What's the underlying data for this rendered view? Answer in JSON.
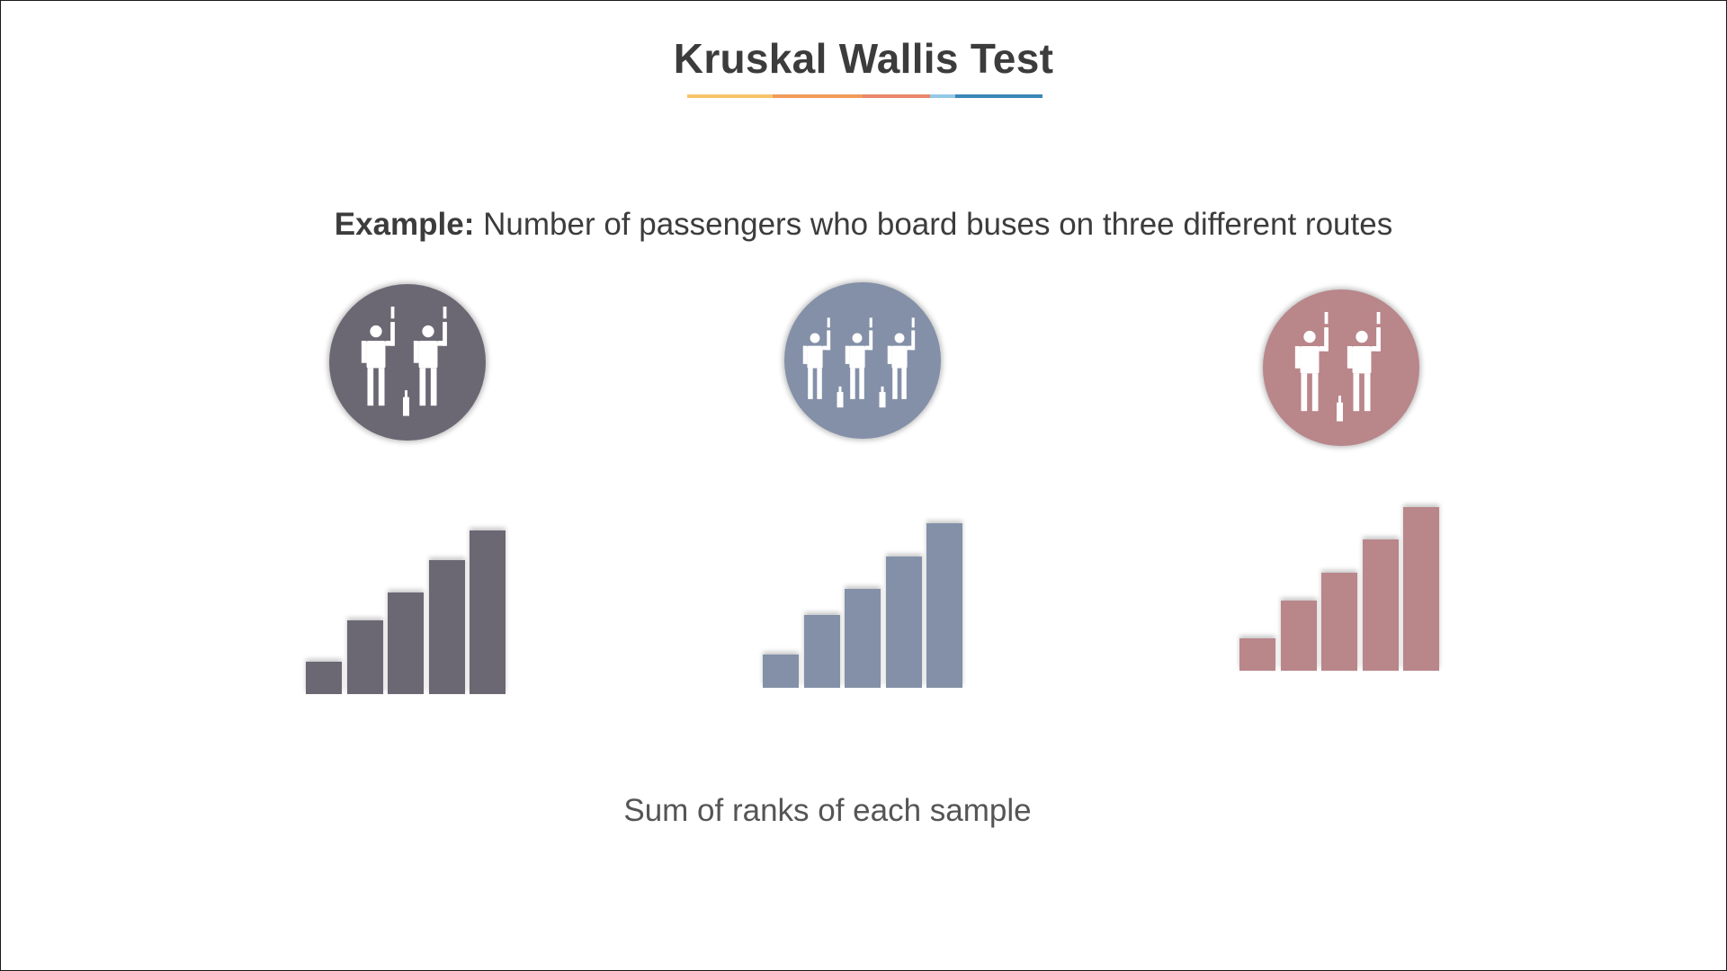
{
  "slide": {
    "title": "Kruskal Wallis Test",
    "subtitle_bold": "Example:",
    "subtitle_text": " Number of passengers who board buses on three different routes",
    "caption": "Sum of ranks of each sample",
    "underline_colors": [
      "#f7c46c",
      "#f19b5b",
      "#e9866b",
      "#93c8e6",
      "#3b87b8"
    ]
  },
  "groups": [
    {
      "icon": "two-passengers-icon",
      "color": "#6b6873",
      "people": 2,
      "bar_levels": [
        0.2,
        0.45,
        0.62,
        0.82,
        1.0
      ]
    },
    {
      "icon": "three-passengers-icon",
      "color": "#8390a8",
      "people": 3,
      "bar_levels": [
        0.2,
        0.44,
        0.6,
        0.8,
        1.0
      ]
    },
    {
      "icon": "two-passengers-icon",
      "color": "#b9868a",
      "people": 2,
      "bar_levels": [
        0.2,
        0.43,
        0.6,
        0.8,
        1.0
      ]
    }
  ]
}
